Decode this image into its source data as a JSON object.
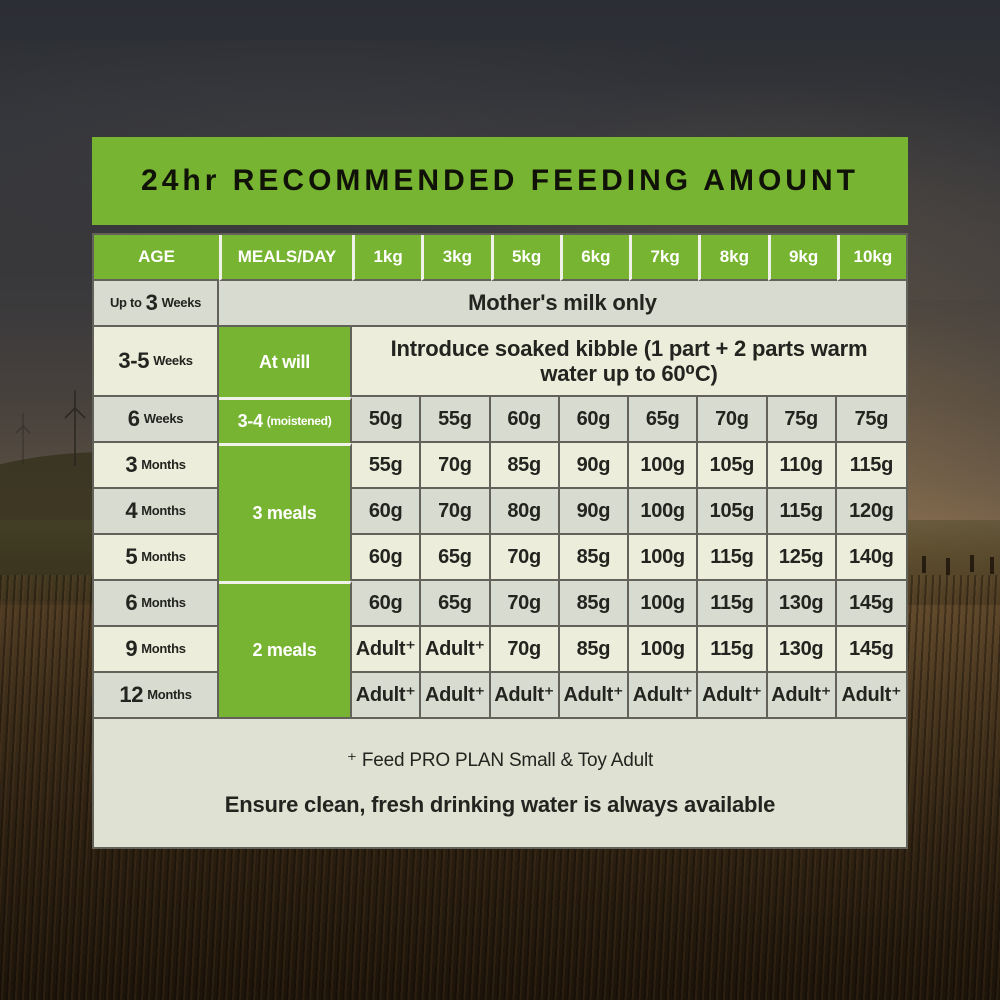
{
  "title": "24hr RECOMMENDED FEEDING AMOUNT",
  "colors": {
    "green": "#77b431",
    "row_gray": "#d8dbcf",
    "row_cream": "#eceedb",
    "footer_bg": "#dfe2d3",
    "border": "#62625a",
    "separator_white": "#f1f2e7",
    "title_text": "#101208",
    "header_text": "#ffffff",
    "body_text": "#23241f"
  },
  "ui": {
    "footnote": "⁺ Feed PRO PLAN Small & Toy Adult",
    "water_note": "Ensure clean, fresh drinking water is always available",
    "grid": {
      "header": [
        "AGE",
        "MEALS/DAY",
        "1kg",
        "3kg",
        "5kg",
        "6kg",
        "7kg",
        "8kg",
        "9kg",
        "10kg"
      ],
      "rows": [
        {
          "age": {
            "pre": "Up to",
            "num": "3",
            "unit": "Weeks"
          },
          "shade": "gray",
          "full_span": "Mother's milk only"
        },
        {
          "age": {
            "num": "3-5",
            "unit": "Weeks"
          },
          "shade": "cream",
          "meals": {
            "text": "At will",
            "rowspan": 1
          },
          "value_span": "Introduce soaked kibble (1 part + 2 parts warm water up to 60⁰C)"
        },
        {
          "age": {
            "num": "6",
            "unit": "Weeks"
          },
          "shade": "gray",
          "meals": {
            "text": "3-4",
            "note": "(moistened)",
            "rowspan": 1
          },
          "values": [
            "50g",
            "55g",
            "60g",
            "60g",
            "65g",
            "70g",
            "75g",
            "75g"
          ]
        },
        {
          "age": {
            "num": "3",
            "unit": "Months"
          },
          "shade": "cream",
          "meals": {
            "text": "3 meals",
            "rowspan": 3
          },
          "values": [
            "55g",
            "70g",
            "85g",
            "90g",
            "100g",
            "105g",
            "110g",
            "115g"
          ]
        },
        {
          "age": {
            "num": "4",
            "unit": "Months"
          },
          "shade": "gray",
          "values": [
            "60g",
            "70g",
            "80g",
            "90g",
            "100g",
            "105g",
            "115g",
            "120g"
          ]
        },
        {
          "age": {
            "num": "5",
            "unit": "Months"
          },
          "shade": "cream",
          "values": [
            "60g",
            "65g",
            "70g",
            "85g",
            "100g",
            "115g",
            "125g",
            "140g"
          ]
        },
        {
          "age": {
            "num": "6",
            "unit": "Months"
          },
          "shade": "gray",
          "meals": {
            "text": "2 meals",
            "rowspan": 3
          },
          "values": [
            "60g",
            "65g",
            "70g",
            "85g",
            "100g",
            "115g",
            "130g",
            "145g"
          ]
        },
        {
          "age": {
            "num": "9",
            "unit": "Months"
          },
          "shade": "cream",
          "values": [
            "Adult⁺",
            "Adult⁺",
            "70g",
            "85g",
            "100g",
            "115g",
            "130g",
            "145g"
          ]
        },
        {
          "age": {
            "num": "12",
            "unit": "Months"
          },
          "shade": "gray",
          "values": [
            "Adult⁺",
            "Adult⁺",
            "Adult⁺",
            "Adult⁺",
            "Adult⁺",
            "Adult⁺",
            "Adult⁺",
            "Adult⁺"
          ]
        }
      ]
    }
  },
  "chart_data": {
    "type": "table",
    "title": "24hr RECOMMENDED FEEDING AMOUNT",
    "columns": [
      "AGE",
      "MEALS/DAY",
      "1kg",
      "3kg",
      "5kg",
      "6kg",
      "7kg",
      "8kg",
      "9kg",
      "10kg"
    ],
    "rows": [
      {
        "age": "Up to 3 Weeks",
        "meals_per_day": "",
        "amounts": "Mother's milk only"
      },
      {
        "age": "3-5 Weeks",
        "meals_per_day": "At will",
        "amounts": "Introduce soaked kibble (1 part + 2 parts warm water up to 60⁰C)"
      },
      {
        "age": "6 Weeks",
        "meals_per_day": "3-4 (moistened)",
        "amounts": [
          "50g",
          "55g",
          "60g",
          "60g",
          "65g",
          "70g",
          "75g",
          "75g"
        ]
      },
      {
        "age": "3 Months",
        "meals_per_day": "3 meals",
        "amounts": [
          "55g",
          "70g",
          "85g",
          "90g",
          "100g",
          "105g",
          "110g",
          "115g"
        ]
      },
      {
        "age": "4 Months",
        "meals_per_day": "3 meals",
        "amounts": [
          "60g",
          "70g",
          "80g",
          "90g",
          "100g",
          "105g",
          "115g",
          "120g"
        ]
      },
      {
        "age": "5 Months",
        "meals_per_day": "3 meals",
        "amounts": [
          "60g",
          "65g",
          "70g",
          "85g",
          "100g",
          "115g",
          "125g",
          "140g"
        ]
      },
      {
        "age": "6 Months",
        "meals_per_day": "2 meals",
        "amounts": [
          "60g",
          "65g",
          "70g",
          "85g",
          "100g",
          "115g",
          "130g",
          "145g"
        ]
      },
      {
        "age": "9 Months",
        "meals_per_day": "2 meals",
        "amounts": [
          "Adult+",
          "Adult+",
          "70g",
          "85g",
          "100g",
          "115g",
          "130g",
          "145g"
        ]
      },
      {
        "age": "12 Months",
        "meals_per_day": "2 meals",
        "amounts": [
          "Adult+",
          "Adult+",
          "Adult+",
          "Adult+",
          "Adult+",
          "Adult+",
          "Adult+",
          "Adult+"
        ]
      }
    ],
    "footnote": "+ Feed PRO PLAN Small & Toy Adult",
    "note": "Ensure clean, fresh drinking water is always available"
  }
}
